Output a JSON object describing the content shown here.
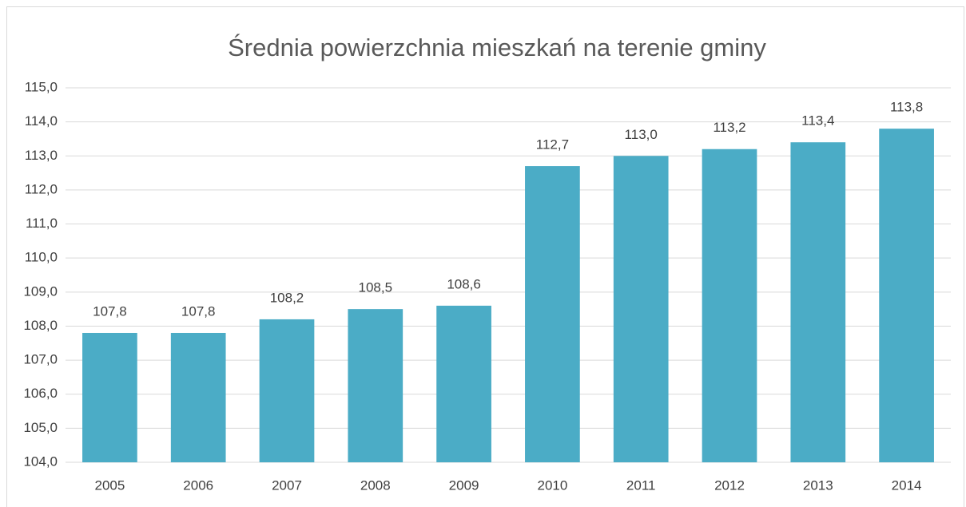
{
  "chart_data": {
    "type": "bar",
    "title": "Średnia powierzchnia mieszkań na terenie gminy",
    "categories": [
      "2005",
      "2006",
      "2007",
      "2008",
      "2009",
      "2010",
      "2011",
      "2012",
      "2013",
      "2014"
    ],
    "values": [
      107.8,
      107.8,
      108.2,
      108.5,
      108.6,
      112.7,
      113.0,
      113.2,
      113.4,
      113.8
    ],
    "value_labels": [
      "107,8",
      "107,8",
      "108,2",
      "108,5",
      "108,6",
      "112,7",
      "113,0",
      "113,2",
      "113,4",
      "113,8"
    ],
    "color": "#4bacc6",
    "ylim": [
      104,
      115
    ],
    "yticks": [
      {
        "value": 104,
        "label": "104,0"
      },
      {
        "value": 105,
        "label": "105,0"
      },
      {
        "value": 106,
        "label": "106,0"
      },
      {
        "value": 107,
        "label": "107,0"
      },
      {
        "value": 108,
        "label": "108,0"
      },
      {
        "value": 109,
        "label": "109,0"
      },
      {
        "value": 110,
        "label": "110,0"
      },
      {
        "value": 111,
        "label": "111,0"
      },
      {
        "value": 112,
        "label": "112,0"
      },
      {
        "value": 113,
        "label": "113,0"
      },
      {
        "value": 114,
        "label": "114,0"
      },
      {
        "value": 115,
        "label": "115,0"
      }
    ],
    "grid": true
  }
}
